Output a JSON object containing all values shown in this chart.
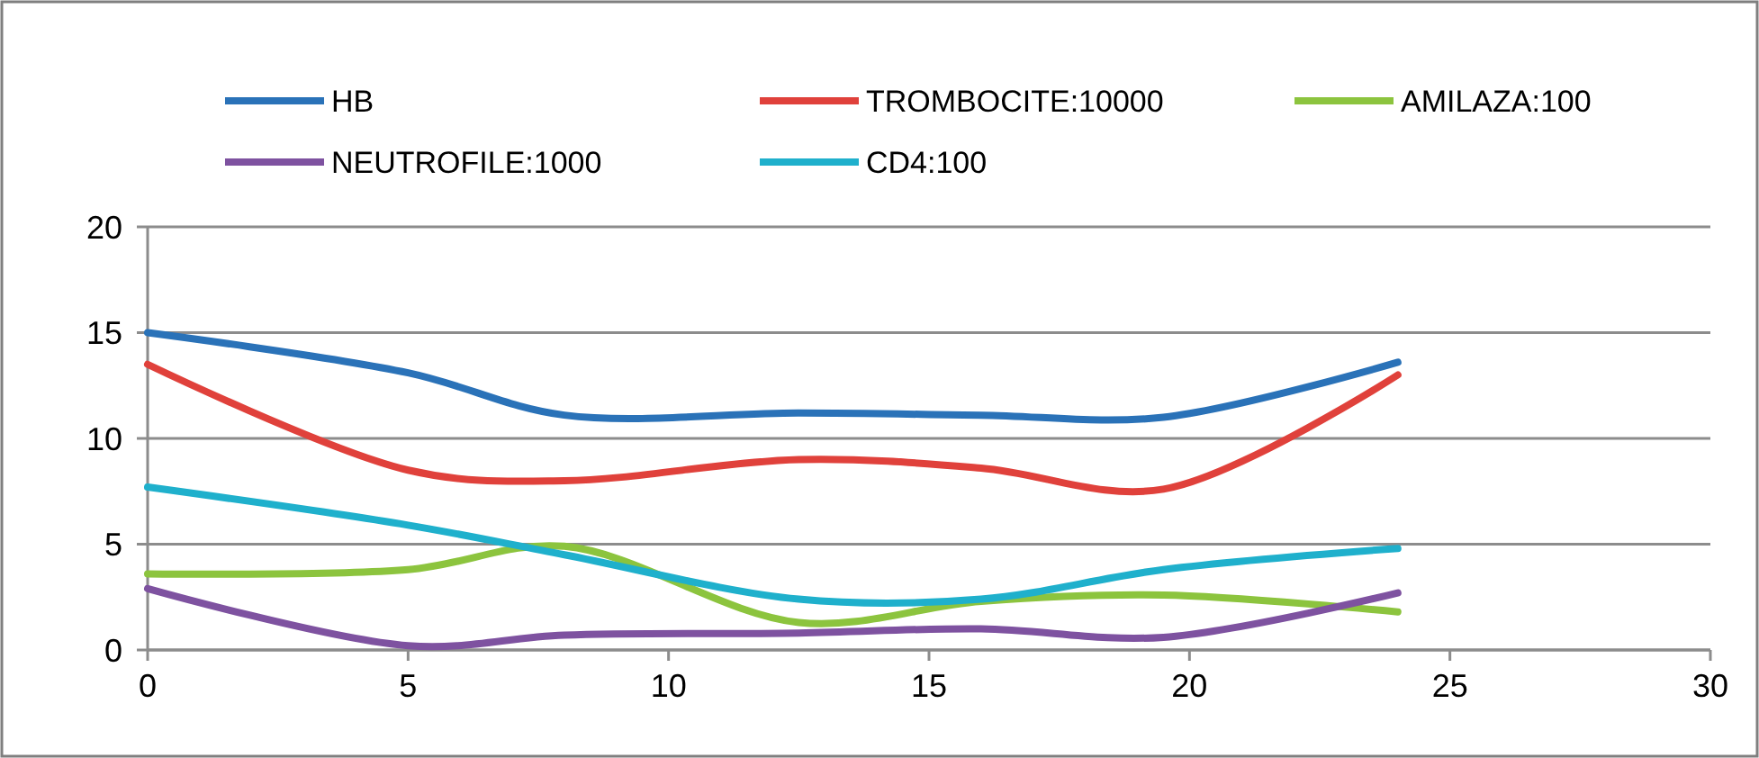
{
  "chart_data": {
    "type": "line",
    "x": [
      0,
      5,
      8,
      12.5,
      16,
      19.5,
      24
    ],
    "series": [
      {
        "name": "HB",
        "color": "#2a72b8",
        "values": [
          15,
          13.1,
          11.1,
          11.2,
          11.1,
          11.0,
          13.6
        ]
      },
      {
        "name": "TROMBOCITE:10000",
        "color": "#e0413b",
        "values": [
          13.5,
          8.5,
          8.0,
          9.0,
          8.6,
          7.6,
          13.0
        ]
      },
      {
        "name": "AMILAZA:100",
        "color": "#8cc43e",
        "values": [
          3.6,
          3.8,
          4.9,
          1.3,
          2.3,
          2.6,
          1.8
        ]
      },
      {
        "name": "NEUTROFILE:1000",
        "color": "#7e52a0",
        "values": [
          2.9,
          0.2,
          0.7,
          0.8,
          1.0,
          0.6,
          2.7
        ]
      },
      {
        "name": "CD4:100",
        "color": "#1fb0cc",
        "values": [
          7.7,
          5.9,
          4.5,
          2.4,
          2.4,
          3.8,
          4.8
        ]
      }
    ],
    "xlim": [
      0,
      30
    ],
    "xticks": [
      0,
      5,
      10,
      15,
      20,
      25,
      30
    ],
    "ylim": [
      0,
      20
    ],
    "yticks": [
      0,
      5,
      10,
      15,
      20
    ],
    "grid": "y",
    "legend": "top"
  }
}
